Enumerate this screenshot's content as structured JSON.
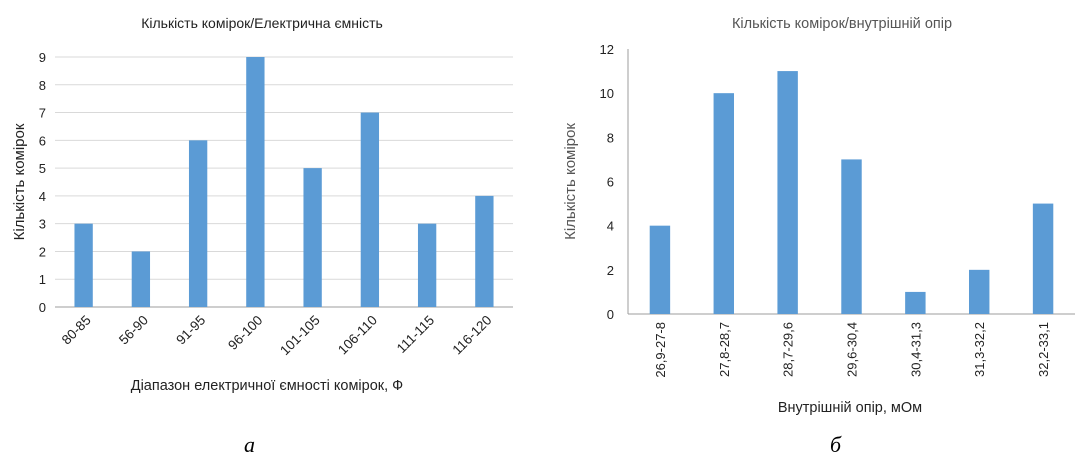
{
  "chart_data": [
    {
      "type": "bar",
      "title": "Кількість комірок/Електрична ємність",
      "xlabel": "Діапазон електричної ємності комірок, Ф",
      "ylabel": "Кількість комірок",
      "categories": [
        "80-85",
        "56-90",
        "91-95",
        "96-100",
        "101-105",
        "106-110",
        "111-115",
        "116-120"
      ],
      "values": [
        3,
        2,
        6,
        9,
        5,
        7,
        3,
        4
      ],
      "ylim": [
        0,
        9
      ],
      "yticks": [
        "0",
        "1",
        "2",
        "3",
        "4",
        "5",
        "6",
        "7",
        "8",
        "9"
      ],
      "grid": true,
      "bar_color": "#5B9BD5",
      "caption": "а"
    },
    {
      "type": "bar",
      "title": "Кількість комірок/внутрішній  опір",
      "xlabel": "Внутрішній опір, мОм",
      "ylabel": "Кількість комірок",
      "categories": [
        "26,9-27-8",
        "27,8-28,7",
        "28,7-29,6",
        "29,6-30,4",
        "30,4-31,3",
        "31,3-32,2",
        "32,2-33,1"
      ],
      "values": [
        4,
        10,
        11,
        7,
        1,
        2,
        5
      ],
      "ylim": [
        0,
        12
      ],
      "yticks": [
        "0",
        "2",
        "4",
        "6",
        "8",
        "10",
        "12"
      ],
      "grid": false,
      "bar_color": "#5B9BD5",
      "caption": "б"
    }
  ]
}
